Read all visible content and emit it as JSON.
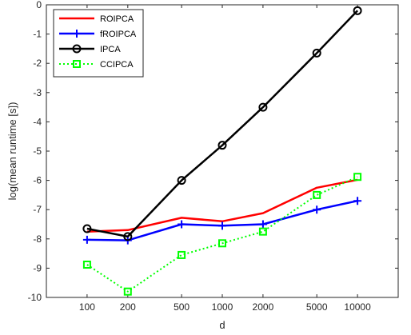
{
  "chart_data": {
    "type": "line",
    "title": "",
    "xlabel": "d",
    "ylabel": "log(mean runtime [s])",
    "x_categories": [
      "100",
      "200",
      "500",
      "1000",
      "2000",
      "5000",
      "10000"
    ],
    "x_values": [
      100,
      200,
      500,
      1000,
      2000,
      5000,
      10000
    ],
    "x_scale": "log",
    "ylim": [
      -10,
      0
    ],
    "yticks": [
      "-10",
      "-9",
      "-8",
      "-7",
      "-6",
      "-5",
      "-4",
      "-3",
      "-2",
      "-1",
      "0"
    ],
    "grid": false,
    "legend_placement": "top-left",
    "series": [
      {
        "name": "ROIPCA",
        "color": "#ff0000",
        "marker": "none",
        "line_style": "solid",
        "values": [
          -7.75,
          -7.7,
          -7.28,
          -7.4,
          -7.12,
          -6.25,
          -5.98
        ]
      },
      {
        "name": "fROIPCA",
        "color": "#0000ff",
        "marker": "plus",
        "line_style": "solid",
        "values": [
          -8.03,
          -8.05,
          -7.5,
          -7.55,
          -7.5,
          -7.0,
          -6.7
        ]
      },
      {
        "name": "IPCA",
        "color": "#000000",
        "marker": "circle",
        "line_style": "solid",
        "values": [
          -7.65,
          -7.92,
          -6.0,
          -4.8,
          -3.5,
          -1.65,
          -0.2
        ]
      },
      {
        "name": "CCIPCA",
        "color": "#00ff00",
        "marker": "square",
        "line_style": "dotted",
        "values": [
          -8.88,
          -9.8,
          -8.55,
          -8.15,
          -7.75,
          -6.5,
          -5.88
        ]
      }
    ]
  }
}
